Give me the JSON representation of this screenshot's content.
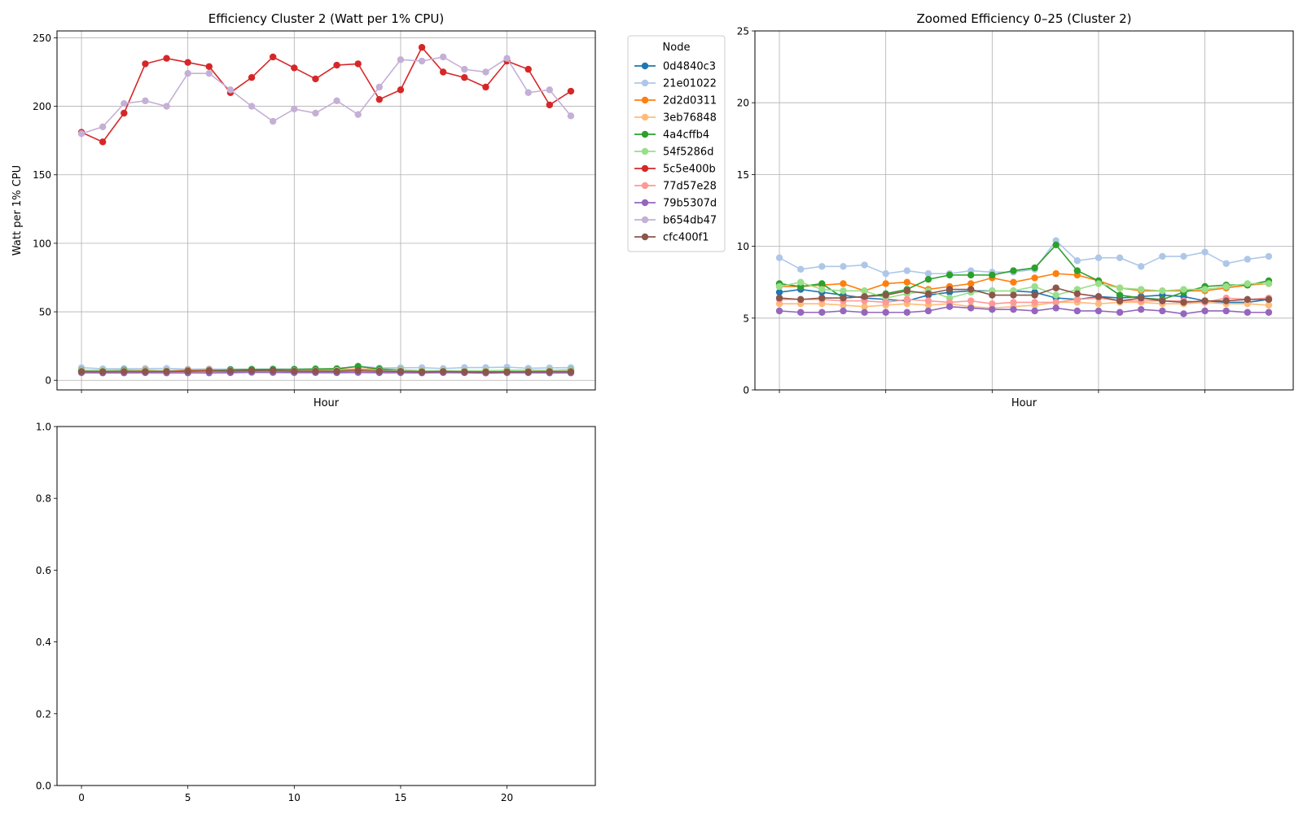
{
  "colors": {
    "0d4840c3": "#1f77b4",
    "21e01022": "#aec7e8",
    "2d2d0311": "#ff7f0e",
    "3eb76848": "#ffbb78",
    "4a4cffb4": "#2ca02c",
    "54f5286d": "#98df8a",
    "5c5e400b": "#d62728",
    "77d57e28": "#ff9896",
    "79b5307d": "#9467bd",
    "b654db47": "#c5b0d5",
    "cfc400f1": "#8c564b"
  },
  "legend": {
    "title": "Node",
    "entries": [
      "0d4840c3",
      "21e01022",
      "2d2d0311",
      "3eb76848",
      "4a4cffb4",
      "54f5286d",
      "5c5e400b",
      "77d57e28",
      "79b5307d",
      "b654db47",
      "cfc400f1"
    ]
  },
  "chart_data": [
    {
      "id": "main",
      "type": "line",
      "title": "Efficiency Cluster 2 (Watt per 1% CPU)",
      "xlabel": "Hour",
      "ylabel": "Watt per 1% CPU",
      "xlim": [
        -1.15,
        24.15
      ],
      "ylim": [
        -7,
        255
      ],
      "yticks": [
        0,
        50,
        100,
        150,
        200,
        250
      ],
      "xticks": [
        0,
        5,
        10,
        15,
        20
      ],
      "show_xtick_labels": false,
      "grid": true,
      "legend_position": "outside-right",
      "x": [
        0,
        1,
        2,
        3,
        4,
        5,
        6,
        7,
        8,
        9,
        10,
        11,
        12,
        13,
        14,
        15,
        16,
        17,
        18,
        19,
        20,
        21,
        22,
        23
      ],
      "series": [
        {
          "name": "0d4840c3",
          "values": [
            6.8,
            7.0,
            6.8,
            6.6,
            6.4,
            6.3,
            6.2,
            6.6,
            6.8,
            6.9,
            6.9,
            6.9,
            6.8,
            6.4,
            6.3,
            6.5,
            6.4,
            6.5,
            6.6,
            6.5,
            6.2,
            6.1,
            6.1,
            6.3
          ]
        },
        {
          "name": "21e01022",
          "values": [
            9.2,
            8.4,
            8.6,
            8.6,
            8.7,
            8.1,
            8.3,
            8.1,
            8.1,
            8.3,
            8.2,
            8.2,
            8.4,
            10.4,
            9.0,
            9.2,
            9.2,
            8.6,
            9.3,
            9.3,
            9.6,
            8.8,
            9.1,
            9.3
          ]
        },
        {
          "name": "2d2d0311",
          "values": [
            7.2,
            7.2,
            7.3,
            7.4,
            6.9,
            7.4,
            7.5,
            7.0,
            7.2,
            7.4,
            7.8,
            7.5,
            7.8,
            8.1,
            8.0,
            7.6,
            7.1,
            6.9,
            6.9,
            6.9,
            6.9,
            7.1,
            7.3,
            7.4
          ]
        },
        {
          "name": "3eb76848",
          "values": [
            6.0,
            6.0,
            6.0,
            5.9,
            5.8,
            5.9,
            6.0,
            5.9,
            6.0,
            5.8,
            5.7,
            5.8,
            5.9,
            6.1,
            6.1,
            6.0,
            6.1,
            6.1,
            6.0,
            6.0,
            6.1,
            6.0,
            6.0,
            5.9
          ]
        },
        {
          "name": "4a4cffb4",
          "values": [
            7.4,
            7.2,
            7.4,
            6.4,
            6.5,
            6.7,
            7.0,
            7.7,
            8.0,
            8.0,
            8.0,
            8.3,
            8.5,
            10.1,
            8.3,
            7.6,
            6.6,
            6.4,
            6.3,
            6.8,
            7.2,
            7.3,
            7.3,
            7.6
          ]
        },
        {
          "name": "54f5286d",
          "values": [
            7.2,
            7.5,
            7.0,
            6.9,
            6.9,
            6.4,
            6.7,
            6.9,
            6.4,
            6.8,
            6.9,
            6.9,
            7.2,
            6.6,
            7.0,
            7.4,
            7.1,
            7.0,
            6.9,
            7.0,
            7.0,
            7.2,
            7.4,
            7.4
          ]
        },
        {
          "name": "5c5e400b",
          "values": [
            181,
            174,
            195,
            231,
            235,
            232,
            229,
            210,
            221,
            236,
            228,
            220,
            230,
            231,
            205,
            212,
            243,
            225,
            221,
            214,
            233,
            227,
            201,
            211
          ]
        },
        {
          "name": "77d57e28",
          "values": [
            6.3,
            6.3,
            6.3,
            6.2,
            6.2,
            6.1,
            6.3,
            6.2,
            6.1,
            6.2,
            6.0,
            6.1,
            6.1,
            6.1,
            6.3,
            6.4,
            6.2,
            6.2,
            6.2,
            6.2,
            6.1,
            6.4,
            6.3,
            6.4
          ]
        },
        {
          "name": "79b5307d",
          "values": [
            5.5,
            5.4,
            5.4,
            5.5,
            5.4,
            5.4,
            5.4,
            5.5,
            5.8,
            5.7,
            5.6,
            5.6,
            5.5,
            5.7,
            5.5,
            5.5,
            5.4,
            5.6,
            5.5,
            5.3,
            5.5,
            5.5,
            5.4,
            5.4
          ]
        },
        {
          "name": "b654db47",
          "values": [
            180,
            185,
            202,
            204,
            200,
            224,
            224,
            212,
            200,
            189,
            198,
            195,
            204,
            194,
            214,
            234,
            233,
            236,
            227,
            225,
            235,
            210,
            212,
            193
          ]
        },
        {
          "name": "cfc400f1",
          "values": [
            6.4,
            6.3,
            6.4,
            6.4,
            6.5,
            6.6,
            6.9,
            6.7,
            7.0,
            7.0,
            6.6,
            6.6,
            6.6,
            7.1,
            6.7,
            6.5,
            6.2,
            6.4,
            6.2,
            6.1,
            6.2,
            6.2,
            6.3,
            6.3
          ]
        }
      ]
    },
    {
      "id": "zoom",
      "type": "line",
      "title": "Zoomed Efficiency 0–25 (Cluster 2)",
      "xlabel": "Hour",
      "ylabel": "",
      "xlim": [
        -1.15,
        24.15
      ],
      "ylim": [
        0,
        25
      ],
      "yticks": [
        0,
        5,
        10,
        15,
        20,
        25
      ],
      "xticks": [
        0,
        5,
        10,
        15,
        20
      ],
      "show_xtick_labels": false,
      "grid": true,
      "series_from": "main"
    },
    {
      "id": "empty",
      "type": "line",
      "title": "",
      "xlabel": "",
      "ylabel": "",
      "xlim": [
        -1.15,
        24.15
      ],
      "ylim": [
        0,
        1
      ],
      "yticks": [
        0.0,
        0.2,
        0.4,
        0.6,
        0.8,
        1.0
      ],
      "ytick_labels": [
        "0.0",
        "0.2",
        "0.4",
        "0.6",
        "0.8",
        "1.0"
      ],
      "xticks": [
        0,
        5,
        10,
        15,
        20
      ],
      "show_xtick_labels": true,
      "grid": false,
      "series": []
    }
  ]
}
